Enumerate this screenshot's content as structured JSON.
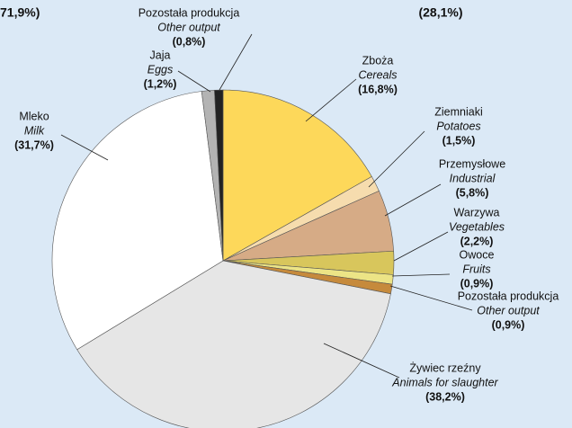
{
  "chart_data": {
    "type": "pie",
    "annotations": [
      "71,9%)",
      "(28,1%)"
    ],
    "categories": [
      "Zboża",
      "Ziemniaki",
      "Przemysłowe",
      "Warzywa",
      "Owoce",
      "Pozostała produkcja",
      "Żywiec rzeźny",
      "Mleko",
      "Jaja",
      "Pozostała produkcja"
    ],
    "categories_en": [
      "Cereals",
      "Potatoes",
      "Industrial",
      "Vegetables",
      "Fruits",
      "Other output",
      "Animals for slaughter",
      "Milk",
      "Eggs",
      "Other output"
    ],
    "values": [
      16.8,
      1.5,
      5.8,
      2.2,
      0.9,
      0.9,
      38.2,
      31.7,
      1.2,
      0.8
    ],
    "value_labels": [
      "(16,8%)",
      "(1,5%)",
      "(5,8%)",
      "(2,2%)",
      "(0,9%)",
      "(0,9%)",
      "(38,2%)",
      "(31,7%)",
      "(1,2%)",
      "(0,8%)"
    ],
    "colors": [
      "#fdd85a",
      "#f6dcae",
      "#d6ab86",
      "#d8c65c",
      "#ece486",
      "#c68a3c",
      "#e6e6e6",
      "#ffffff",
      "#b3b3b3",
      "#222222"
    ]
  }
}
